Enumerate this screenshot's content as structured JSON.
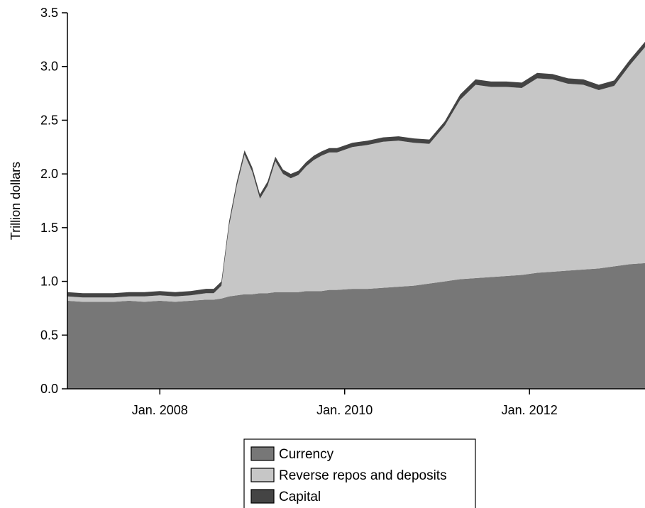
{
  "chart_data": {
    "type": "area",
    "stacked": true,
    "title": "",
    "xlabel": "",
    "ylabel": "Trillion dollars",
    "ylim": [
      0,
      3.5
    ],
    "xlim": [
      "2007-01",
      "2013-04"
    ],
    "yticks": [
      "0.0",
      "0.5",
      "1.0",
      "1.5",
      "2.0",
      "2.5",
      "3.0",
      "3.5"
    ],
    "xticks": [
      {
        "label": "Jan. 2008",
        "date": "2008-01"
      },
      {
        "label": "Jan. 2010",
        "date": "2010-01"
      },
      {
        "label": "Jan. 2012",
        "date": "2012-01"
      }
    ],
    "legend_position": "bottom-center",
    "x": [
      "2007-01",
      "2007-03",
      "2007-05",
      "2007-07",
      "2007-09",
      "2007-11",
      "2008-01",
      "2008-03",
      "2008-05",
      "2008-07",
      "2008-08",
      "2008-09",
      "2008-10",
      "2008-11",
      "2008-12",
      "2009-01",
      "2009-02",
      "2009-03",
      "2009-04",
      "2009-05",
      "2009-06",
      "2009-07",
      "2009-08",
      "2009-09",
      "2009-10",
      "2009-11",
      "2009-12",
      "2010-02",
      "2010-04",
      "2010-06",
      "2010-08",
      "2010-10",
      "2010-12",
      "2011-02",
      "2011-04",
      "2011-06",
      "2011-08",
      "2011-10",
      "2011-12",
      "2012-02",
      "2012-04",
      "2012-06",
      "2012-08",
      "2012-10",
      "2012-12",
      "2013-02",
      "2013-04"
    ],
    "series": [
      {
        "name": "Currency",
        "color": "#777777",
        "values": [
          0.82,
          0.81,
          0.81,
          0.81,
          0.82,
          0.81,
          0.82,
          0.81,
          0.82,
          0.83,
          0.83,
          0.84,
          0.86,
          0.87,
          0.88,
          0.88,
          0.89,
          0.89,
          0.9,
          0.9,
          0.9,
          0.9,
          0.91,
          0.91,
          0.91,
          0.92,
          0.92,
          0.93,
          0.93,
          0.94,
          0.95,
          0.96,
          0.98,
          1.0,
          1.02,
          1.03,
          1.04,
          1.05,
          1.06,
          1.08,
          1.09,
          1.1,
          1.11,
          1.12,
          1.14,
          1.16,
          1.17
        ]
      },
      {
        "name": "Reverse repos and deposits",
        "color": "#c6c6c6",
        "values": [
          0.04,
          0.04,
          0.04,
          0.04,
          0.04,
          0.05,
          0.05,
          0.05,
          0.05,
          0.06,
          0.06,
          0.12,
          0.66,
          1.02,
          1.3,
          1.14,
          0.88,
          1.0,
          1.22,
          1.1,
          1.06,
          1.09,
          1.16,
          1.22,
          1.26,
          1.28,
          1.28,
          1.32,
          1.34,
          1.36,
          1.36,
          1.33,
          1.3,
          1.45,
          1.67,
          1.8,
          1.77,
          1.76,
          1.74,
          1.81,
          1.79,
          1.74,
          1.72,
          1.66,
          1.68,
          1.85,
          2.01
        ]
      },
      {
        "name": "Capital",
        "color": "#444444",
        "values": [
          0.04,
          0.04,
          0.04,
          0.04,
          0.04,
          0.04,
          0.04,
          0.04,
          0.04,
          0.04,
          0.04,
          0.04,
          0.04,
          0.04,
          0.04,
          0.04,
          0.04,
          0.04,
          0.04,
          0.04,
          0.04,
          0.04,
          0.04,
          0.04,
          0.04,
          0.04,
          0.04,
          0.04,
          0.04,
          0.04,
          0.04,
          0.04,
          0.04,
          0.04,
          0.05,
          0.05,
          0.05,
          0.05,
          0.05,
          0.05,
          0.05,
          0.05,
          0.05,
          0.05,
          0.05,
          0.05,
          0.05
        ]
      }
    ]
  }
}
